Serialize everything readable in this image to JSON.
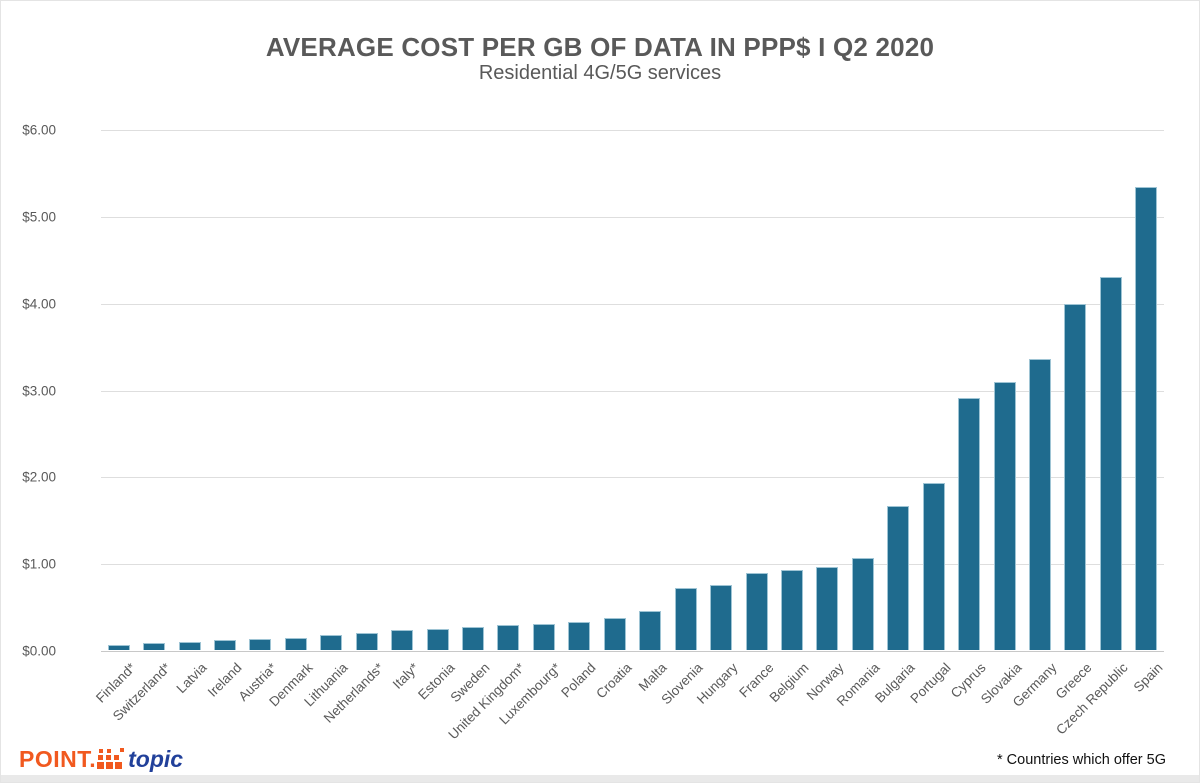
{
  "chart_data": {
    "type": "bar",
    "title": "AVERAGE COST PER GB OF DATA IN PPP$ I Q2 2020",
    "subtitle": "Residential 4G/5G services",
    "categories": [
      "Finland*",
      "Switzerland*",
      "Latvia",
      "Ireland",
      "Austria*",
      "Denmark",
      "Lithuania",
      "Netherlands*",
      "Italy*",
      "Estonia",
      "Sweden",
      "United Kingdom*",
      "Luxembourg*",
      "Poland",
      "Croatia",
      "Malta",
      "Slovenia",
      "Hungary",
      "France",
      "Belgium",
      "Norway",
      "Romania",
      "Bulgaria",
      "Portugal",
      "Cyprus",
      "Slovakia",
      "Germany",
      "Greece",
      "Czech Republic",
      "Spain"
    ],
    "values": [
      0.06,
      0.08,
      0.09,
      0.11,
      0.13,
      0.14,
      0.17,
      0.2,
      0.23,
      0.24,
      0.26,
      0.29,
      0.3,
      0.32,
      0.37,
      0.45,
      0.71,
      0.75,
      0.89,
      0.92,
      0.96,
      1.06,
      1.66,
      1.92,
      2.9,
      3.09,
      3.35,
      3.99,
      4.3,
      5.33
    ],
    "xlabel": "",
    "ylabel": "",
    "ylim": [
      0,
      6
    ],
    "y_tick_labels": [
      "$0.00",
      "$1.00",
      "$2.00",
      "$3.00",
      "$4.00",
      "$5.00",
      "$6.00"
    ],
    "grid": "horizontal",
    "legend": "none",
    "bar_color": "#1f6b8e",
    "bar_border_color": "#9ec4d4",
    "text_color": "#595959"
  },
  "footer": {
    "note": "* Countries which offer 5G",
    "logo_point": "POINT.",
    "logo_topic": "topic",
    "logo_orange": "#f1591f",
    "logo_navy": "#21409a"
  }
}
